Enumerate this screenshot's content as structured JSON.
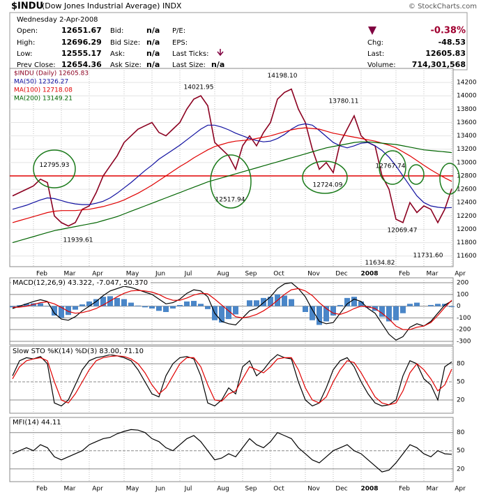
{
  "header": {
    "symbol": "$INDU",
    "name": "(Dow Jones Industrial Average) INDX",
    "credit": "© StockCharts.com",
    "date": "Wednesday  2-Apr-2008",
    "open_label": "Open:",
    "open": "12651.67",
    "high_label": "High:",
    "high": "12696.29",
    "low_label": "Low:",
    "low": "12555.17",
    "prev_label": "Prev Close:",
    "prev": "12654.36",
    "bid_label": "Bid:",
    "bid": "n/a",
    "bidsize_label": "Bid Size:",
    "bidsize": "n/a",
    "ask_label": "Ask:",
    "ask": "n/a",
    "asksize_label": "Ask Size:",
    "asksize": "n/a",
    "pe_label": "P/E:",
    "eps_label": "EPS:",
    "ticks_label": "Last Ticks:",
    "lastsize_label": "Last Size:",
    "lastsize": "n/a",
    "pct": "-0.38%",
    "chg_label": "Chg:",
    "chg": "-48.53",
    "last_label": "Last:",
    "last": "12605.83",
    "vol_label": "Volume:",
    "vol": "714,301,568"
  },
  "chart_data": [
    {
      "type": "line",
      "grid": true,
      "categories": [
        null,
        null,
        null,
        "Feb",
        null,
        null,
        null,
        "Mar",
        null,
        null,
        null,
        "Apr",
        null,
        null,
        null,
        null,
        "May",
        null,
        null,
        null,
        "Jun",
        null,
        null,
        null,
        "Jul",
        null,
        null,
        null,
        null,
        "Aug",
        null,
        null,
        null,
        "Sep",
        null,
        null,
        null,
        "Oct",
        null,
        null,
        null,
        null,
        "Nov",
        null,
        null,
        null,
        "Dec",
        null,
        null,
        null,
        "2008",
        null,
        null,
        null,
        null,
        "Feb",
        null,
        null,
        null,
        "Mar",
        null,
        null,
        null,
        "Apr"
      ],
      "ylim": [
        11440,
        14410
      ],
      "yticks": [
        11600,
        11800,
        12000,
        12200,
        12400,
        12600,
        12800,
        13000,
        13200,
        13400,
        13600,
        13800,
        14000,
        14200
      ],
      "reference_line": 12800,
      "reference_color": "#e00000",
      "series": [
        {
          "name": "$INDU (Daily) 12605.83",
          "color": "#8b0020",
          "values": [
            12500,
            12550,
            12600,
            12650,
            12750,
            12700,
            12200,
            12100,
            12050,
            12100,
            12300,
            12350,
            12550,
            12800,
            12950,
            13100,
            13300,
            13400,
            13500,
            13550,
            13600,
            13450,
            13400,
            13500,
            13600,
            13800,
            13950,
            14000,
            13850,
            13300,
            13200,
            13100,
            12900,
            13250,
            13400,
            13250,
            13450,
            13600,
            13950,
            14050,
            14100,
            13800,
            13600,
            13200,
            12900,
            13000,
            12850,
            13300,
            13500,
            13700,
            13400,
            13300,
            13250,
            12800,
            12600,
            12150,
            12100,
            12400,
            12250,
            12350,
            12300,
            12100,
            12300,
            12605.83
          ]
        },
        {
          "name": "MA(50) 12326.27",
          "color": "#1010a0",
          "values": [
            12300,
            12330,
            12360,
            12400,
            12440,
            12470,
            12460,
            12430,
            12400,
            12380,
            12370,
            12370,
            12390,
            12420,
            12470,
            12540,
            12620,
            12700,
            12790,
            12880,
            12960,
            13050,
            13120,
            13190,
            13260,
            13340,
            13420,
            13500,
            13560,
            13560,
            13530,
            13490,
            13440,
            13400,
            13360,
            13330,
            13310,
            13320,
            13360,
            13420,
            13500,
            13560,
            13580,
            13560,
            13480,
            13390,
            13300,
            13250,
            13220,
            13250,
            13290,
            13300,
            13250,
            13180,
            13080,
            12950,
            12800,
            12650,
            12500,
            12400,
            12350,
            12330,
            12320,
            12326.27
          ]
        },
        {
          "name": "MA(100) 12718.08",
          "color": "#e00000",
          "values": [
            12100,
            12130,
            12160,
            12190,
            12220,
            12250,
            12270,
            12280,
            12280,
            12280,
            12290,
            12300,
            12320,
            12340,
            12370,
            12400,
            12440,
            12490,
            12540,
            12600,
            12660,
            12730,
            12800,
            12870,
            12940,
            13000,
            13070,
            13130,
            13190,
            13240,
            13270,
            13300,
            13320,
            13330,
            13340,
            13360,
            13380,
            13400,
            13430,
            13460,
            13490,
            13510,
            13520,
            13510,
            13500,
            13470,
            13440,
            13420,
            13400,
            13380,
            13360,
            13340,
            13320,
            13290,
            13260,
            13220,
            13160,
            13100,
            13030,
            12960,
            12890,
            12830,
            12770,
            12718.08
          ]
        },
        {
          "name": "MA(200) 13149.21",
          "color": "#006400",
          "values": [
            11800,
            11830,
            11860,
            11890,
            11920,
            11950,
            11980,
            12000,
            12020,
            12040,
            12060,
            12080,
            12100,
            12130,
            12160,
            12190,
            12230,
            12270,
            12310,
            12350,
            12390,
            12430,
            12470,
            12510,
            12550,
            12590,
            12630,
            12670,
            12710,
            12740,
            12770,
            12800,
            12830,
            12860,
            12890,
            12920,
            12950,
            12980,
            13010,
            13040,
            13070,
            13100,
            13130,
            13160,
            13190,
            13220,
            13240,
            13260,
            13280,
            13300,
            13310,
            13310,
            13300,
            13290,
            13280,
            13270,
            13250,
            13230,
            13210,
            13190,
            13180,
            13170,
            13160,
            13149.21
          ]
        }
      ],
      "annotations": [
        12795.93,
        12517.94,
        14021.95,
        {
          "value": 14198.1,
          "label": "14198.10"
        },
        13780.11,
        12724.09,
        12767.74,
        12069.47,
        11634.82,
        {
          "value": 11731.6,
          "label": "11731.60"
        },
        11939.61
      ]
    },
    {
      "type": "line",
      "title": "MACD(12,26,9) 43.322, -7.047, 50.370",
      "grid": true,
      "ylim": [
        -330,
        242
      ],
      "yticks": [
        200,
        100,
        0,
        -100,
        -200,
        -300
      ],
      "series": [
        {
          "type": "bar",
          "color": "#4a86c8",
          "values": [
            -10,
            8,
            20,
            25,
            25,
            3,
            -80,
            -100,
            -75,
            -30,
            15,
            40,
            60,
            80,
            85,
            70,
            60,
            30,
            5,
            -10,
            -20,
            -40,
            -50,
            -20,
            10,
            40,
            45,
            20,
            -25,
            -120,
            -140,
            -110,
            -70,
            0,
            50,
            50,
            70,
            80,
            100,
            90,
            60,
            0,
            -50,
            -120,
            -160,
            -130,
            -80,
            10,
            70,
            80,
            40,
            -15,
            -40,
            -90,
            -130,
            -120,
            -60,
            20,
            30,
            0,
            10,
            20,
            20,
            -7.047
          ]
        },
        {
          "color": "#000000",
          "values": [
            -20,
            0,
            20,
            40,
            55,
            40,
            -60,
            -110,
            -120,
            -90,
            -40,
            0,
            40,
            90,
            130,
            150,
            170,
            160,
            140,
            120,
            100,
            60,
            20,
            30,
            60,
            110,
            140,
            130,
            80,
            -60,
            -130,
            -150,
            -160,
            -100,
            -40,
            -20,
            30,
            80,
            150,
            190,
            200,
            150,
            80,
            -30,
            -130,
            -150,
            -140,
            -60,
            20,
            60,
            40,
            -20,
            -60,
            -150,
            -240,
            -290,
            -260,
            -180,
            -150,
            -170,
            -130,
            -60,
            10,
            43.322
          ]
        },
        {
          "color": "#e00000",
          "values": [
            -10,
            -8,
            0,
            15,
            30,
            37,
            20,
            -10,
            -45,
            -60,
            -55,
            -40,
            -20,
            10,
            45,
            80,
            110,
            130,
            135,
            130,
            120,
            100,
            70,
            50,
            50,
            70,
            95,
            110,
            105,
            60,
            10,
            -40,
            -90,
            -100,
            -90,
            -70,
            -40,
            0,
            50,
            100,
            140,
            150,
            130,
            90,
            30,
            -20,
            -60,
            -70,
            -50,
            -20,
            0,
            -5,
            -20,
            -60,
            -110,
            -170,
            -200,
            -200,
            -180,
            -170,
            -140,
            -80,
            -10,
            50.37
          ]
        }
      ]
    },
    {
      "type": "line",
      "title": "Slow STO %K(14) %D(3) 83.00, 71.10",
      "grid": true,
      "ylim": [
        -2,
        109
      ],
      "yticks": [
        80,
        50,
        20
      ],
      "series": [
        {
          "color": "#000000",
          "values": [
            60,
            85,
            90,
            88,
            92,
            80,
            15,
            10,
            20,
            45,
            70,
            85,
            90,
            92,
            95,
            93,
            90,
            85,
            70,
            50,
            30,
            25,
            60,
            80,
            90,
            92,
            88,
            60,
            15,
            10,
            20,
            40,
            30,
            75,
            85,
            60,
            70,
            85,
            95,
            90,
            88,
            50,
            20,
            10,
            15,
            40,
            70,
            85,
            90,
            75,
            50,
            30,
            15,
            10,
            12,
            20,
            60,
            85,
            80,
            55,
            45,
            20,
            75,
            83
          ]
        },
        {
          "color": "#e00000",
          "values": [
            55,
            75,
            85,
            88,
            90,
            85,
            50,
            20,
            15,
            30,
            50,
            70,
            85,
            90,
            92,
            93,
            92,
            88,
            80,
            65,
            45,
            30,
            40,
            60,
            80,
            90,
            90,
            75,
            45,
            20,
            18,
            30,
            35,
            55,
            75,
            70,
            65,
            75,
            88,
            90,
            90,
            70,
            40,
            20,
            15,
            25,
            50,
            70,
            85,
            82,
            65,
            45,
            25,
            15,
            12,
            15,
            35,
            65,
            80,
            70,
            55,
            35,
            45,
            71.1
          ]
        }
      ]
    },
    {
      "type": "line",
      "title": "MFI(14) 44.11",
      "grid": true,
      "categories": [
        null,
        null,
        null,
        "Feb",
        null,
        null,
        null,
        "Mar",
        null,
        null,
        null,
        "Apr",
        null,
        null,
        null,
        null,
        "May",
        null,
        null,
        null,
        "Jun",
        null,
        null,
        null,
        "Jul",
        null,
        null,
        null,
        null,
        "Aug",
        null,
        null,
        null,
        "Sep",
        null,
        null,
        null,
        "Oct",
        null,
        null,
        null,
        null,
        "Nov",
        null,
        null,
        null,
        "Dec",
        null,
        null,
        null,
        "2008",
        null,
        null,
        null,
        null,
        "Feb",
        null,
        null,
        null,
        "Mar",
        null,
        null,
        null,
        "Apr"
      ],
      "ylim": [
        -1,
        105
      ],
      "yticks": [
        80,
        50,
        20
      ],
      "series": [
        {
          "color": "#000000",
          "values": [
            45,
            50,
            55,
            50,
            60,
            55,
            40,
            35,
            40,
            45,
            50,
            60,
            65,
            70,
            72,
            78,
            82,
            85,
            84,
            80,
            70,
            65,
            55,
            50,
            60,
            70,
            75,
            65,
            50,
            35,
            38,
            45,
            40,
            55,
            70,
            60,
            55,
            65,
            80,
            75,
            70,
            55,
            45,
            35,
            30,
            40,
            50,
            55,
            60,
            50,
            45,
            35,
            25,
            15,
            18,
            30,
            45,
            60,
            55,
            45,
            40,
            50,
            45,
            44.11
          ]
        }
      ]
    }
  ]
}
